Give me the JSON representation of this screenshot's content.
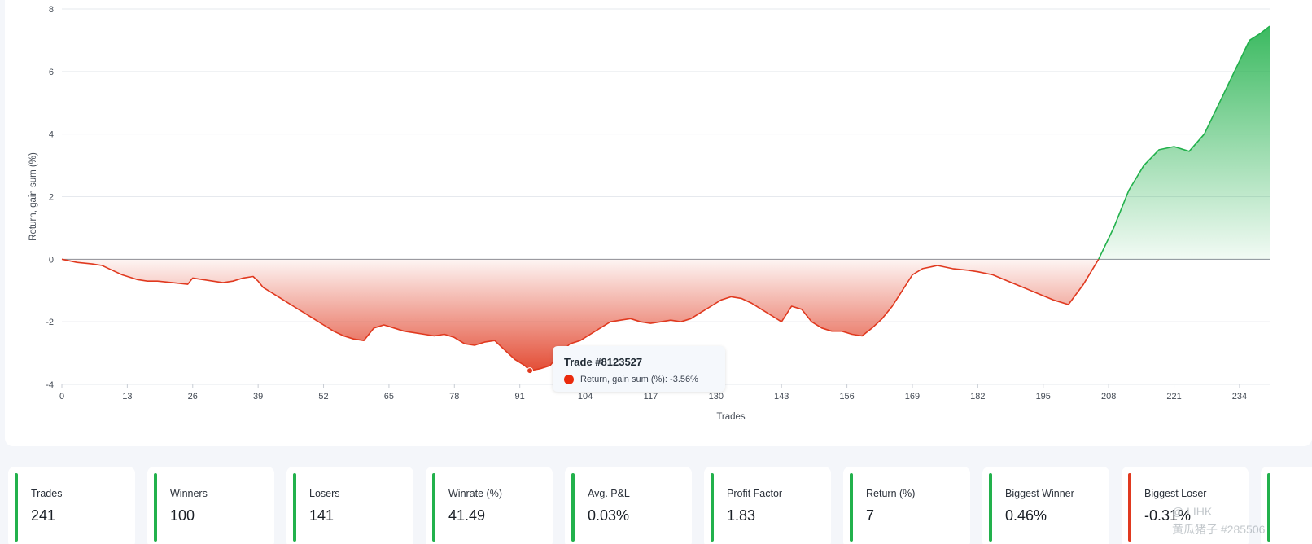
{
  "chart_data": {
    "type": "area",
    "xlabel": "Trades",
    "ylabel": "Return, gain sum (%)",
    "xlim": [
      0,
      240
    ],
    "ylim": [
      -4,
      8
    ],
    "x_ticks": [
      0,
      13,
      26,
      39,
      52,
      65,
      78,
      91,
      104,
      117,
      130,
      143,
      156,
      169,
      182,
      195,
      208,
      221,
      234
    ],
    "y_ticks": [
      8,
      6,
      4,
      2,
      0,
      -2,
      -4
    ],
    "grid": "horizontal",
    "colors": {
      "positive": "#22b14c",
      "negative": "#e0391f"
    },
    "series": [
      {
        "x": [
          0,
          3,
          6,
          8,
          10,
          12,
          14,
          15,
          17,
          19,
          22,
          25,
          26,
          28,
          30,
          32,
          34,
          36,
          38,
          39,
          40,
          42,
          44,
          46,
          48,
          50,
          52,
          54,
          56,
          58,
          60,
          62,
          64,
          66,
          68,
          70,
          72,
          74,
          76,
          78,
          80,
          82,
          84,
          86,
          88,
          90,
          92,
          93,
          95,
          97,
          99,
          101,
          103,
          105,
          107,
          109,
          111,
          113,
          115,
          117,
          119,
          121,
          123,
          125,
          127,
          129,
          131,
          133,
          135,
          137,
          139,
          141,
          143,
          145,
          147,
          149,
          151,
          153,
          155,
          157,
          159,
          161,
          163,
          165,
          167,
          169,
          171,
          174,
          177,
          180,
          182,
          185,
          188,
          191,
          194,
          197,
          200,
          203,
          206,
          209,
          212,
          215,
          218,
          221,
          224,
          227,
          230,
          233,
          236,
          238,
          240
        ],
        "y": [
          0,
          -0.1,
          -0.15,
          -0.2,
          -0.35,
          -0.5,
          -0.6,
          -0.65,
          -0.7,
          -0.7,
          -0.75,
          -0.8,
          -0.6,
          -0.65,
          -0.7,
          -0.75,
          -0.7,
          -0.6,
          -0.55,
          -0.7,
          -0.9,
          -1.1,
          -1.3,
          -1.5,
          -1.7,
          -1.9,
          -2.1,
          -2.3,
          -2.45,
          -2.55,
          -2.6,
          -2.2,
          -2.1,
          -2.2,
          -2.3,
          -2.35,
          -2.4,
          -2.45,
          -2.4,
          -2.5,
          -2.7,
          -2.75,
          -2.65,
          -2.6,
          -2.9,
          -3.2,
          -3.4,
          -3.56,
          -3.5,
          -3.4,
          -3.0,
          -2.7,
          -2.6,
          -2.4,
          -2.2,
          -2.0,
          -1.95,
          -1.9,
          -2.0,
          -2.05,
          -2.0,
          -1.95,
          -2.0,
          -1.9,
          -1.7,
          -1.5,
          -1.3,
          -1.2,
          -1.25,
          -1.4,
          -1.6,
          -1.8,
          -2.0,
          -1.5,
          -1.6,
          -2.0,
          -2.2,
          -2.3,
          -2.3,
          -2.4,
          -2.45,
          -2.2,
          -1.9,
          -1.5,
          -1.0,
          -0.5,
          -0.3,
          -0.2,
          -0.3,
          -0.35,
          -0.4,
          -0.5,
          -0.7,
          -0.9,
          -1.1,
          -1.3,
          -1.45,
          -0.8,
          0.0,
          1.0,
          2.2,
          3.0,
          3.5,
          3.6,
          3.45,
          4.0,
          5.0,
          6.0,
          7.0,
          7.2,
          7.45
        ]
      }
    ]
  },
  "tooltip": {
    "title": "Trade #8123527",
    "text": "Return, gain sum (%): -3.56%",
    "x": 93,
    "y": -3.56
  },
  "stats": [
    {
      "label": "Trades",
      "value": "241",
      "status": "positive"
    },
    {
      "label": "Winners",
      "value": "100",
      "status": "positive"
    },
    {
      "label": "Losers",
      "value": "141",
      "status": "positive"
    },
    {
      "label": "Winrate (%)",
      "value": "41.49",
      "status": "positive"
    },
    {
      "label": "Avg. P&L",
      "value": "0.03%",
      "status": "positive"
    },
    {
      "label": "Profit Factor",
      "value": "1.83",
      "status": "positive"
    },
    {
      "label": "Return (%)",
      "value": "7",
      "status": "positive"
    },
    {
      "label": "Biggest Winner",
      "value": "0.46%",
      "status": "positive"
    },
    {
      "label": "Biggest Loser",
      "value": "-0.31%",
      "status": "negative"
    },
    {
      "label": "",
      "value": "",
      "status": "positive"
    }
  ],
  "watermark": {
    "line1": "@ LIHK",
    "line2": "黄瓜猪子 #285506"
  }
}
